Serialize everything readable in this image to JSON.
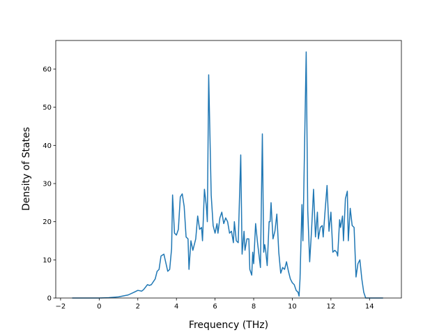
{
  "chart_data": {
    "type": "line",
    "xlabel": "Frequency (THz)",
    "ylabel": "Density of States",
    "color": "#1f77b4",
    "xlim": [
      -2.25,
      15.65
    ],
    "ylim": [
      0,
      67.5
    ],
    "xticks": [
      {
        "value": -2,
        "label": "−2"
      },
      0,
      2,
      4,
      6,
      8,
      10,
      12,
      14
    ],
    "yticks": [
      0,
      10,
      20,
      30,
      40,
      50,
      60
    ],
    "x": [
      -1.4,
      0,
      0.5,
      1.0,
      1.5,
      1.8,
      2.0,
      2.2,
      2.3,
      2.5,
      2.6,
      2.7,
      2.9,
      3.0,
      3.1,
      3.2,
      3.35,
      3.55,
      3.65,
      3.75,
      3.8,
      3.9,
      4.0,
      4.1,
      4.2,
      4.3,
      4.4,
      4.5,
      4.6,
      4.65,
      4.75,
      4.85,
      5.0,
      5.1,
      5.2,
      5.3,
      5.35,
      5.45,
      5.55,
      5.6,
      5.67,
      5.8,
      5.9,
      6.0,
      6.1,
      6.15,
      6.25,
      6.35,
      6.45,
      6.55,
      6.65,
      6.75,
      6.85,
      6.95,
      7.0,
      7.1,
      7.2,
      7.33,
      7.4,
      7.5,
      7.55,
      7.65,
      7.75,
      7.8,
      7.9,
      7.95,
      8.0,
      8.1,
      8.2,
      8.35,
      8.45,
      8.52,
      8.57,
      8.62,
      8.7,
      8.8,
      8.85,
      8.9,
      9.0,
      9.1,
      9.2,
      9.3,
      9.4,
      9.5,
      9.6,
      9.7,
      9.8,
      9.9,
      10.0,
      10.1,
      10.2,
      10.3,
      10.35,
      10.4,
      10.5,
      10.55,
      10.72,
      10.8,
      10.9,
      11.0,
      11.1,
      11.2,
      11.3,
      11.35,
      11.45,
      11.55,
      11.6,
      11.7,
      11.8,
      11.9,
      12.0,
      12.1,
      12.2,
      12.3,
      12.35,
      12.45,
      12.5,
      12.6,
      12.65,
      12.75,
      12.85,
      12.9,
      13.0,
      13.1,
      13.2,
      13.3,
      13.4,
      13.5,
      13.6,
      13.7,
      13.8,
      14.7
    ],
    "values": [
      0,
      0,
      0.1,
      0.3,
      0.8,
      1.5,
      2,
      1.8,
      2.2,
      3.5,
      3.3,
      3.5,
      5,
      7,
      7.5,
      11,
      11.5,
      7,
      7.5,
      13,
      27,
      17,
      16.5,
      18,
      26.5,
      27.3,
      24,
      16,
      15.5,
      7.5,
      15,
      12.5,
      15.5,
      21.5,
      18,
      18.5,
      15,
      28.5,
      24,
      20,
      58.5,
      27,
      19,
      17,
      19.5,
      17,
      21,
      22.5,
      19.5,
      21,
      20,
      17,
      17.5,
      14.5,
      20,
      15,
      14.5,
      37.5,
      11.5,
      17.5,
      12.5,
      15.5,
      15.5,
      7.5,
      6,
      12,
      9,
      19.5,
      14.5,
      8,
      43,
      12,
      14,
      12.5,
      8.5,
      20,
      20,
      25,
      15.5,
      17.5,
      22,
      12,
      6.5,
      8,
      7.5,
      9.5,
      7,
      5,
      4,
      3.5,
      2,
      1.5,
      0.5,
      5,
      24.5,
      15,
      64.5,
      23,
      9.5,
      18,
      28.5,
      16,
      22.5,
      15.5,
      18.5,
      19,
      16,
      23,
      29.5,
      17.5,
      22.5,
      12,
      12.5,
      12,
      11,
      20.5,
      18.5,
      21.5,
      15,
      26,
      28,
      15,
      23.5,
      19,
      18.5,
      5.5,
      9,
      10,
      5,
      1.5,
      0,
      0
    ]
  }
}
